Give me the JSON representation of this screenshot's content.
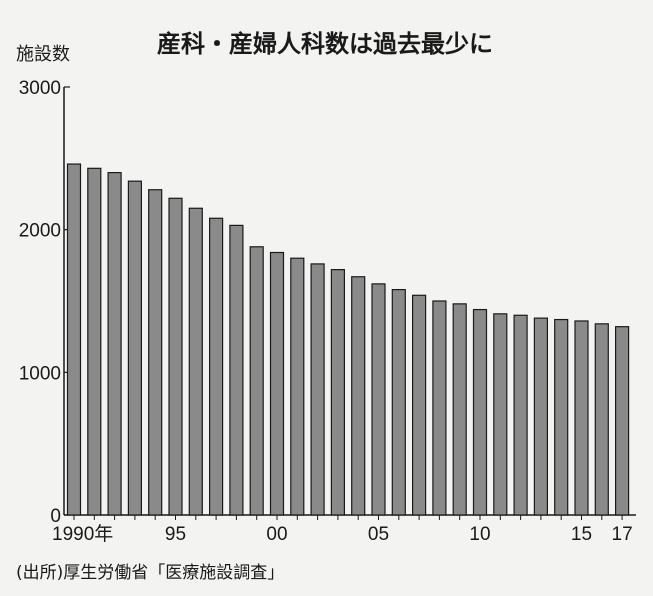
{
  "chart_data": {
    "type": "bar",
    "title": "産科・産婦人科数は過去最少に",
    "ylabel": "施設数",
    "xlabel": "",
    "ylim": [
      0,
      3000
    ],
    "yticks": [
      0,
      1000,
      2000,
      3000
    ],
    "ytick_labels": [
      "0",
      "1000",
      "2000",
      "3000"
    ],
    "categories": [
      "1990",
      "1991",
      "1992",
      "1993",
      "1994",
      "1995",
      "1996",
      "1997",
      "1998",
      "1999",
      "2000",
      "2001",
      "2002",
      "2003",
      "2004",
      "2005",
      "2006",
      "2007",
      "2008",
      "2009",
      "2010",
      "2011",
      "2012",
      "2013",
      "2014",
      "2015",
      "2016",
      "2017"
    ],
    "x_tick_labels": [
      {
        "category": "1990",
        "label": "1990年"
      },
      {
        "category": "1995",
        "label": "95"
      },
      {
        "category": "2000",
        "label": "00"
      },
      {
        "category": "2005",
        "label": "05"
      },
      {
        "category": "2010",
        "label": "10"
      },
      {
        "category": "2015",
        "label": "15"
      },
      {
        "category": "2017",
        "label": "17"
      }
    ],
    "values": [
      2460,
      2430,
      2400,
      2340,
      2280,
      2220,
      2150,
      2080,
      2030,
      1880,
      1840,
      1800,
      1760,
      1720,
      1670,
      1620,
      1580,
      1540,
      1500,
      1480,
      1440,
      1410,
      1400,
      1380,
      1370,
      1360,
      1340,
      1320
    ],
    "bar_color": "#8a8a8a",
    "bar_edge_color": "#1a1a1a",
    "grid": false,
    "legend": "none",
    "source": "(出所)厚生労働省「医療施設調査」"
  }
}
